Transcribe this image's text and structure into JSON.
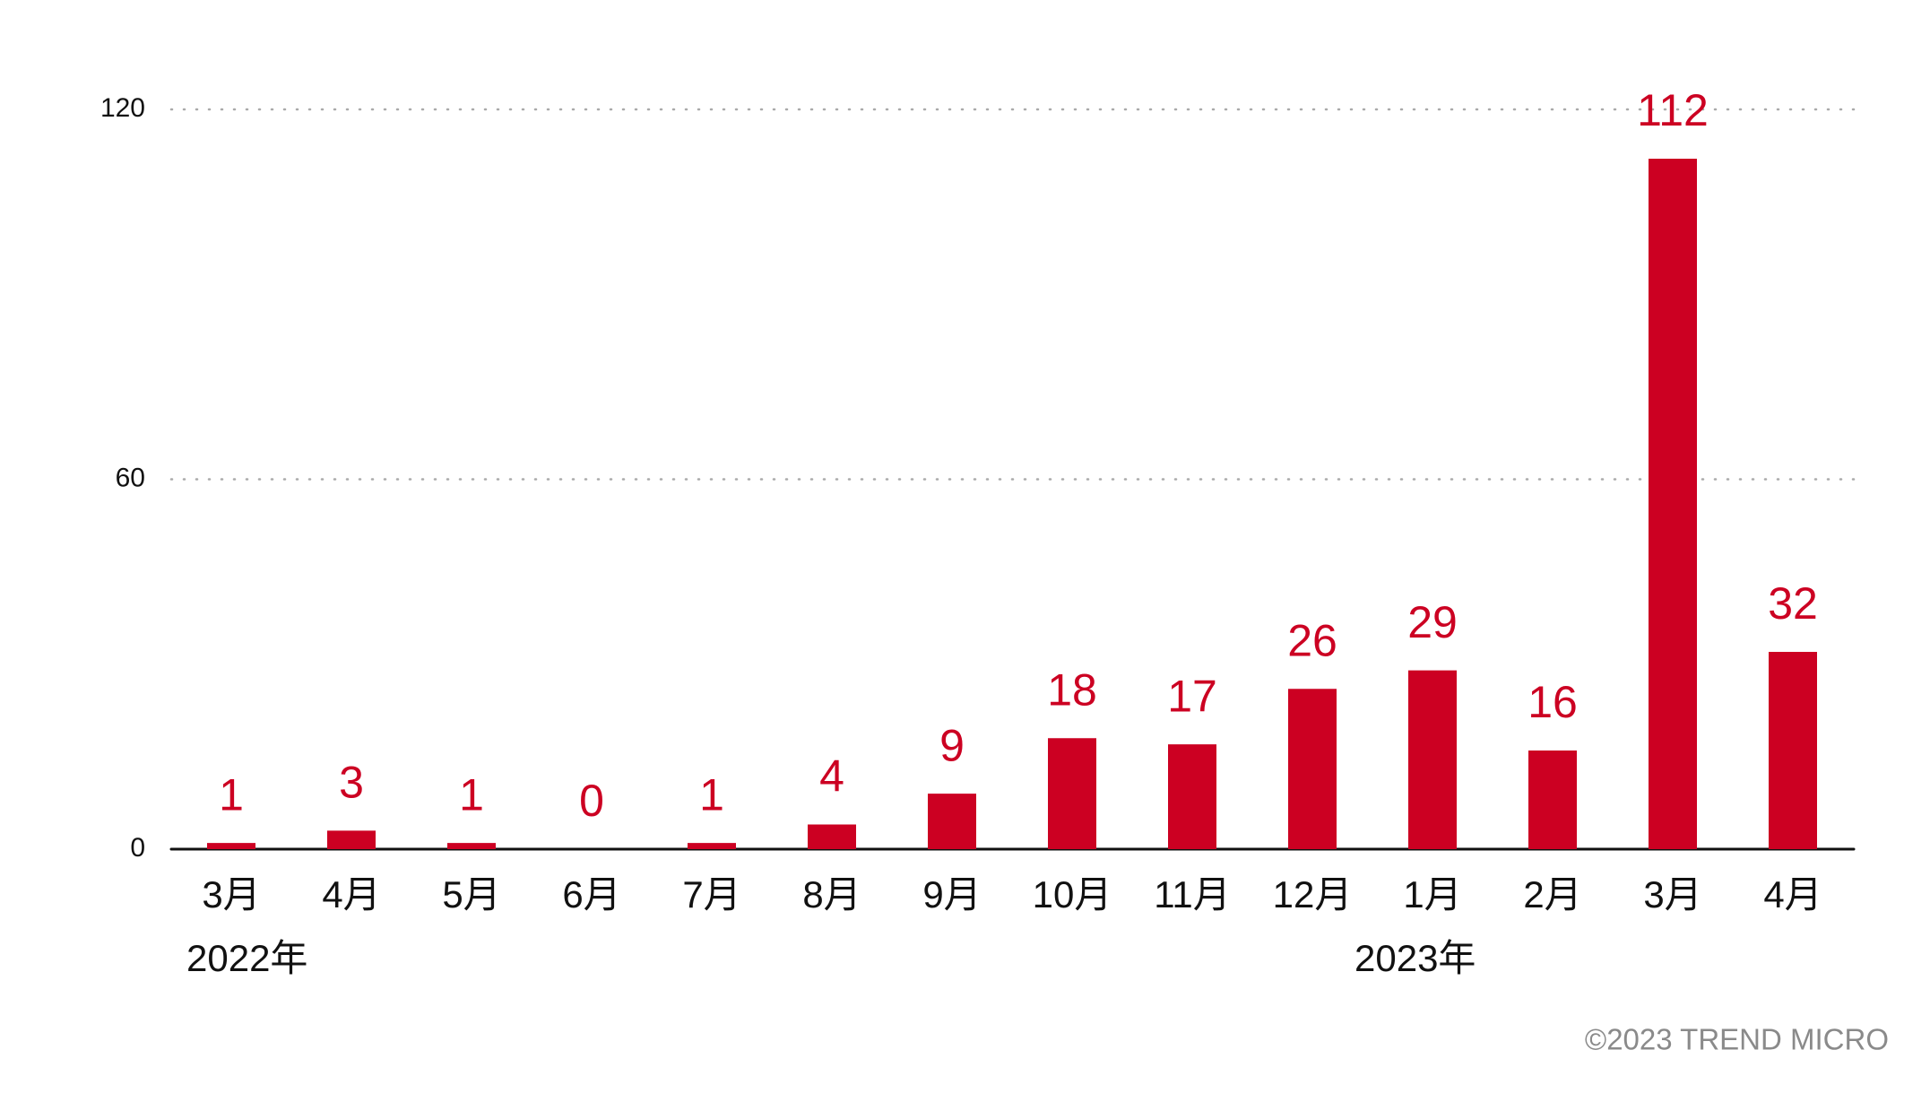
{
  "chart_data": {
    "type": "bar",
    "categories": [
      "3月",
      "4月",
      "5月",
      "6月",
      "7月",
      "8月",
      "9月",
      "10月",
      "11月",
      "12月",
      "1月",
      "2月",
      "3月",
      "4月"
    ],
    "values": [
      1,
      3,
      1,
      0,
      1,
      4,
      9,
      18,
      17,
      26,
      29,
      16,
      112,
      32
    ],
    "color": "#cc0022",
    "ylim": [
      0,
      120
    ],
    "yticks": [
      0,
      60,
      120
    ],
    "grid": true,
    "annotations": [
      "2022年",
      "2023年"
    ],
    "footer": "©2023 TREND MICRO"
  }
}
